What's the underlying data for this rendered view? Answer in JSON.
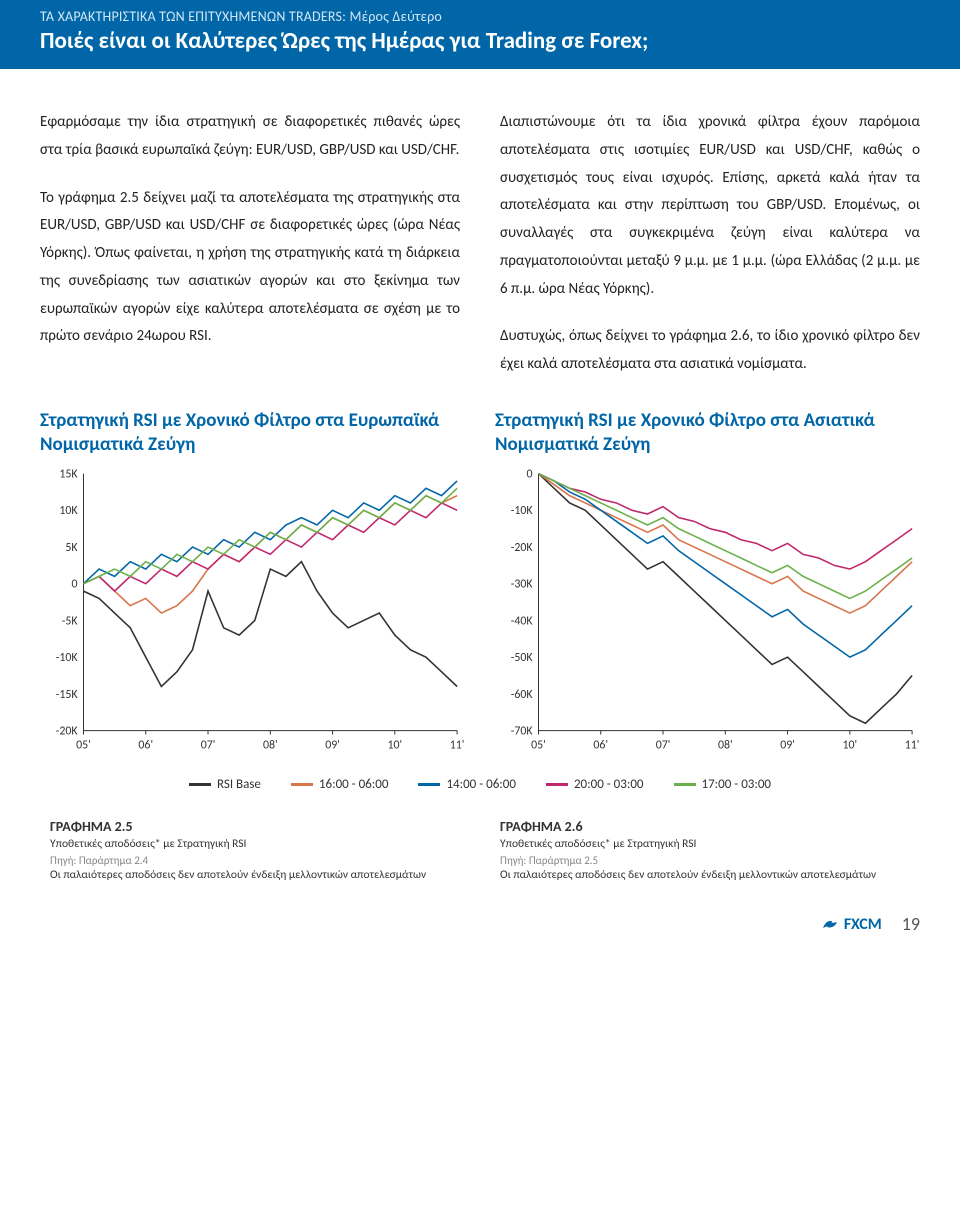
{
  "header": {
    "subtitle": "ΤΑ ΧΑΡΑΚΤΗΡΙΣΤΙΚΑ ΤΩΝ ΕΠΙΤΥΧΗΜΕΝΩΝ TRADERS: Μέρος Δεύτερο",
    "title": "Ποιές είναι οι Καλύτερες Ώρες της Ημέρας για Trading σε Forex;"
  },
  "body": {
    "left_p1": "Εφαρμόσαμε την ίδια στρατηγική σε διαφορετικές πιθανές ώρες στα τρία βασικά ευρωπαϊκά ζεύγη: EUR/USD, GBP/USD και USD/CHF.",
    "left_p2": "Το γράφημα 2.5 δείχνει μαζί τα αποτελέσματα της στρατηγικής στα EUR/USD, GBP/USD και USD/CHF σε διαφορετικές ώρες (ώρα Νέας Υόρκης). Όπως φαίνεται, η χρήση της στρατηγικής κατά τη διάρκεια της συνεδρίασης των ασιατικών αγορών και στο ξεκίνημα των ευρωπαϊκών αγορών είχε καλύτερα αποτελέσματα σε σχέση με το πρώτο σενάριο 24ωρου RSI.",
    "right_p1": "Διαπιστώνουμε ότι τα ίδια χρονικά φίλτρα έχουν παρόμοια αποτελέσματα στις ισοτιμίες EUR/USD και USD/CHF, καθώς ο συσχετισμός τους είναι ισχυρός. Επίσης, αρκετά καλά ήταν τα αποτελέσματα και στην περίπτωση του GBP/USD. Επομένως, οι συναλλαγές στα συγκεκριμένα ζεύγη είναι καλύτερα να πραγματοποιούνται μεταξύ 9 μ.μ. με 1 μ.μ. (ώρα Ελλάδας (2 μ.μ. με 6 π.μ. ώρα Νέας Υόρκης).",
    "right_p2": "Δυστυχώς, όπως δείχνει το γράφημα 2.6, το ίδιο χρονικό φίλτρο δεν έχει καλά αποτελέσματα στα ασιατικά νομίσματα."
  },
  "chart_left": {
    "title": "Στρατηγική RSI με Χρονικό Φίλτρο στα Ευρωπαϊκά Νομισματικά Ζεύγη",
    "type": "line",
    "x_labels": [
      "05'",
      "06'",
      "07'",
      "08'",
      "09'",
      "10'",
      "11'"
    ],
    "y_min": -20,
    "y_max": 15,
    "y_step": 5,
    "y_labels": [
      "15K",
      "10K",
      "5K",
      "0",
      "-5K",
      "-10K",
      "-15K",
      "-20K"
    ],
    "axis_color": "#333",
    "series": [
      {
        "name": "RSI Base",
        "color": "#333333",
        "data": [
          -1,
          -2,
          -4,
          -6,
          -10,
          -14,
          -12,
          -9,
          -1,
          -6,
          -7,
          -5,
          2,
          1,
          3,
          -1,
          -4,
          -6,
          -5,
          -4,
          -7,
          -9,
          -10,
          -12,
          -14
        ]
      },
      {
        "name": "16:00 - 06:00",
        "color": "#d8754a",
        "data": [
          0,
          1,
          -1,
          -3,
          -2,
          -4,
          -3,
          -1,
          2,
          4,
          3,
          5,
          7,
          6,
          8,
          7,
          9,
          8,
          10,
          9,
          11,
          10,
          12,
          11,
          12
        ]
      },
      {
        "name": "14:00 - 06:00",
        "color": "#0066a8",
        "data": [
          0,
          2,
          1,
          3,
          2,
          4,
          3,
          5,
          4,
          6,
          5,
          7,
          6,
          8,
          9,
          8,
          10,
          9,
          11,
          10,
          12,
          11,
          13,
          12,
          14
        ]
      },
      {
        "name": "20:00 - 03:00",
        "color": "#c0276c",
        "data": [
          0,
          1,
          -1,
          1,
          0,
          2,
          1,
          3,
          2,
          4,
          3,
          5,
          4,
          6,
          5,
          7,
          6,
          8,
          7,
          9,
          8,
          10,
          9,
          11,
          10
        ]
      },
      {
        "name": "17:00 - 03:00",
        "color": "#6ab14a",
        "data": [
          0,
          1,
          2,
          1,
          3,
          2,
          4,
          3,
          5,
          4,
          6,
          5,
          7,
          6,
          8,
          7,
          9,
          8,
          10,
          9,
          11,
          10,
          12,
          11,
          13
        ]
      }
    ]
  },
  "chart_right": {
    "title": "Στρατηγική RSI με Χρονικό Φίλτρο στα Ασιατικά Νομισματικά Ζεύγη",
    "type": "line",
    "x_labels": [
      "05'",
      "06'",
      "07'",
      "08'",
      "09'",
      "10'",
      "11'"
    ],
    "y_min": -70,
    "y_max": 0,
    "y_step": 10,
    "y_labels": [
      "0",
      "-10K",
      "-20K",
      "-30K",
      "-40K",
      "-50K",
      "-60K",
      "-70K"
    ],
    "axis_color": "#333",
    "series": [
      {
        "name": "RSI Base",
        "color": "#333333",
        "data": [
          0,
          -4,
          -8,
          -10,
          -14,
          -18,
          -22,
          -26,
          -24,
          -28,
          -32,
          -36,
          -40,
          -44,
          -48,
          -52,
          -50,
          -54,
          -58,
          -62,
          -66,
          -68,
          -64,
          -60,
          -55
        ]
      },
      {
        "name": "16:00 - 06:00",
        "color": "#d8754a",
        "data": [
          0,
          -3,
          -6,
          -8,
          -10,
          -12,
          -14,
          -16,
          -14,
          -18,
          -20,
          -22,
          -24,
          -26,
          -28,
          -30,
          -28,
          -32,
          -34,
          -36,
          -38,
          -36,
          -32,
          -28,
          -24
        ]
      },
      {
        "name": "14:00 - 06:00",
        "color": "#0066a8",
        "data": [
          0,
          -2,
          -5,
          -7,
          -10,
          -13,
          -16,
          -19,
          -17,
          -21,
          -24,
          -27,
          -30,
          -33,
          -36,
          -39,
          -37,
          -41,
          -44,
          -47,
          -50,
          -48,
          -44,
          -40,
          -36
        ]
      },
      {
        "name": "20:00 - 03:00",
        "color": "#c0276c",
        "data": [
          0,
          -2,
          -4,
          -5,
          -7,
          -8,
          -10,
          -11,
          -9,
          -12,
          -13,
          -15,
          -16,
          -18,
          -19,
          -21,
          -19,
          -22,
          -23,
          -25,
          -26,
          -24,
          -21,
          -18,
          -15
        ]
      },
      {
        "name": "17:00 - 03:00",
        "color": "#6ab14a",
        "data": [
          0,
          -2,
          -4,
          -6,
          -8,
          -10,
          -12,
          -14,
          -12,
          -15,
          -17,
          -19,
          -21,
          -23,
          -25,
          -27,
          -25,
          -28,
          -30,
          -32,
          -34,
          -32,
          -29,
          -26,
          -23
        ]
      }
    ]
  },
  "legend": {
    "items": [
      {
        "label": "RSI Base",
        "color": "#333333"
      },
      {
        "label": "16:00 - 06:00",
        "color": "#d8754a"
      },
      {
        "label": "14:00 - 06:00",
        "color": "#0066a8"
      },
      {
        "label": "20:00 - 03:00",
        "color": "#c0276c"
      },
      {
        "label": "17:00 - 03:00",
        "color": "#6ab14a"
      }
    ]
  },
  "caption_left": {
    "title": "ΓΡΑΦΗΜΑ 2.5",
    "sub": "Υποθετικές αποδόσεις* με Στρατηγική RSI",
    "source": "Πηγή: Παράρτημα 2.4",
    "note": "Οι παλαιότερες αποδόσεις δεν αποτελούν ένδειξη μελλοντικών αποτελεσμάτων"
  },
  "caption_right": {
    "title": "ΓΡΑΦΗΜΑ 2.6",
    "sub": "Υποθετικές αποδόσεις* με Στρατηγική RSI",
    "source": "Πηγή: Παράρτημα 2.5",
    "note": "Οι παλαιότερες αποδόσεις δεν αποτελούν ένδειξη μελλοντικών αποτελεσμάτων"
  },
  "footer": {
    "logo_text": "FXCM",
    "page": "19"
  }
}
